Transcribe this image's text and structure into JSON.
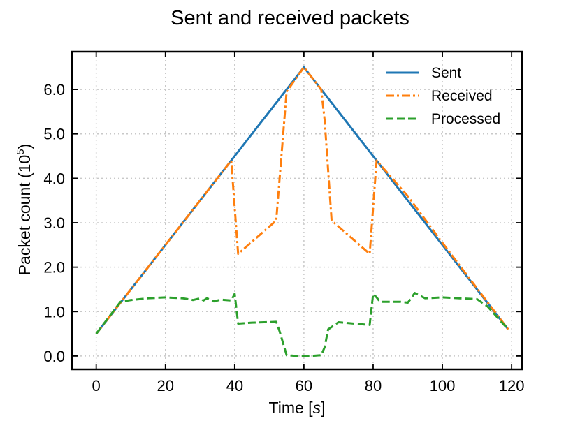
{
  "chart_data": {
    "type": "line",
    "title": "Sent and received packets",
    "xlabel": "Time [",
    "xlabel_unit": "s",
    "xlabel_close": "]",
    "ylabel": "Packet count (10",
    "ylabel_exponent": "5",
    "ylabel_close": ")",
    "xlim": [
      -7,
      123
    ],
    "ylim": [
      -0.3,
      6.85
    ],
    "xticks": [
      0,
      20,
      40,
      60,
      80,
      100,
      120
    ],
    "xtick_labels": [
      "0",
      "20",
      "40",
      "60",
      "80",
      "100",
      "120"
    ],
    "yticks": [
      0,
      1,
      2,
      3,
      4,
      5,
      6
    ],
    "ytick_labels": [
      "0.0",
      "1.0",
      "2.0",
      "3.0",
      "4.0",
      "5.0",
      "6.0"
    ],
    "grid": true,
    "legend_position": "top-right",
    "series": [
      {
        "name": "Sent",
        "color": "#1f77b4",
        "dash": "solid",
        "x": [
          0,
          60,
          119
        ],
        "y": [
          0.5,
          6.5,
          0.6
        ]
      },
      {
        "name": "Received",
        "color": "#ff7f0e",
        "dash": "dashdot",
        "x": [
          0,
          7,
          20,
          39,
          41,
          52,
          55,
          60,
          65,
          66,
          68,
          79,
          81,
          90,
          100,
          119
        ],
        "y": [
          0.5,
          1.2,
          2.5,
          4.4,
          2.3,
          3.05,
          5.95,
          6.5,
          6.0,
          5.3,
          3.05,
          2.3,
          4.4,
          3.6,
          2.55,
          0.6
        ]
      },
      {
        "name": "Processed",
        "color": "#2ca02c",
        "dash": "dashed",
        "x": [
          0,
          7,
          10,
          15,
          20,
          25,
          28,
          30,
          31,
          32,
          34,
          36,
          39,
          40,
          41,
          45,
          52,
          53,
          55,
          58,
          60,
          62,
          65,
          66,
          67,
          70,
          79,
          80,
          81,
          82,
          84,
          88,
          90,
          91,
          92,
          95,
          100,
          110,
          113,
          119
        ],
        "y": [
          0.5,
          1.22,
          1.26,
          1.3,
          1.32,
          1.3,
          1.26,
          1.3,
          1.25,
          1.3,
          1.23,
          1.27,
          1.25,
          1.4,
          0.73,
          0.75,
          0.77,
          0.55,
          0.02,
          0.0,
          0.0,
          0.0,
          0.02,
          0.2,
          0.6,
          0.76,
          0.7,
          1.4,
          1.32,
          1.22,
          1.22,
          1.22,
          1.2,
          1.3,
          1.42,
          1.3,
          1.32,
          1.28,
          1.12,
          0.6
        ]
      }
    ]
  }
}
